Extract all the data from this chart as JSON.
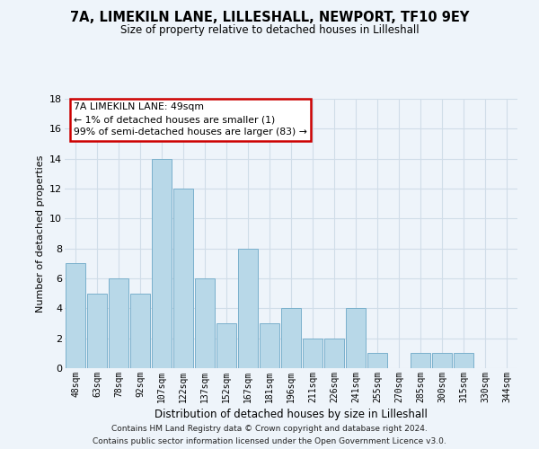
{
  "title": "7A, LIMEKILN LANE, LILLESHALL, NEWPORT, TF10 9EY",
  "subtitle": "Size of property relative to detached houses in Lilleshall",
  "xlabel": "Distribution of detached houses by size in Lilleshall",
  "ylabel": "Number of detached properties",
  "bar_color": "#b8d8e8",
  "bar_edge_color": "#7ab0cc",
  "bin_labels": [
    "48sqm",
    "63sqm",
    "78sqm",
    "92sqm",
    "107sqm",
    "122sqm",
    "137sqm",
    "152sqm",
    "167sqm",
    "181sqm",
    "196sqm",
    "211sqm",
    "226sqm",
    "241sqm",
    "255sqm",
    "270sqm",
    "285sqm",
    "300sqm",
    "315sqm",
    "330sqm",
    "344sqm"
  ],
  "counts": [
    7,
    5,
    6,
    5,
    14,
    12,
    6,
    3,
    8,
    3,
    4,
    2,
    2,
    4,
    1,
    0,
    1,
    1,
    1,
    0,
    0
  ],
  "ylim": [
    0,
    18
  ],
  "yticks": [
    0,
    2,
    4,
    6,
    8,
    10,
    12,
    14,
    16,
    18
  ],
  "annotation_title": "7A LIMEKILN LANE: 49sqm",
  "annotation_line1": "← 1% of detached houses are smaller (1)",
  "annotation_line2": "99% of semi-detached houses are larger (83) →",
  "annotation_box_color": "#ffffff",
  "annotation_box_edge": "#cc0000",
  "footer1": "Contains HM Land Registry data © Crown copyright and database right 2024.",
  "footer2": "Contains public sector information licensed under the Open Government Licence v3.0.",
  "grid_color": "#d0dde8",
  "background_color": "#eef4fa"
}
